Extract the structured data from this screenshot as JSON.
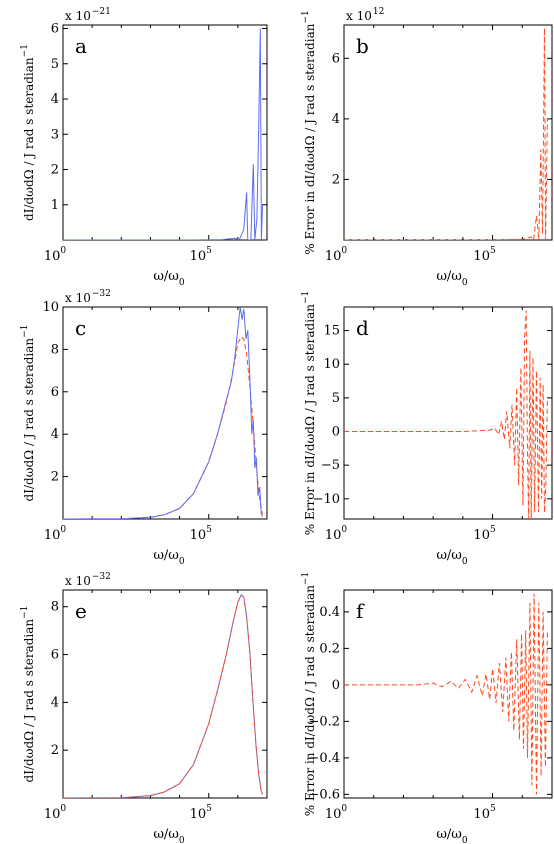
{
  "colors": {
    "solid": "#5B6CF0",
    "dashed": "#FF4A1E",
    "axis": "#000000"
  },
  "chart_data": [
    {
      "id": "a",
      "type": "line",
      "panel_letter": "a",
      "x_scale": "log",
      "xlim": [
        1,
        10000000
      ],
      "ylim": [
        0,
        6.1
      ],
      "multiplier": {
        "base": "x 10",
        "exp": "−21"
      },
      "yticks": [
        1,
        2,
        3,
        4,
        5,
        6
      ],
      "ytick_labels": [
        "1",
        "2",
        "3",
        "4",
        "5",
        "6"
      ],
      "xlabel": {
        "main": "ω/ω",
        "sub": "0"
      },
      "ylabel": {
        "main": "dI/dωdΩ / J rad s steradian",
        "sup": "−1"
      },
      "series": [
        {
          "style": "solid",
          "points": [
            [
              1,
              0
            ],
            [
              1000,
              0
            ],
            [
              30000,
              0
            ],
            [
              300000,
              0.01
            ],
            [
              800000,
              0.05
            ],
            [
              1100000,
              0
            ],
            [
              1600000,
              0.3
            ],
            [
              2000000,
              1.35
            ],
            [
              2200000,
              0
            ],
            [
              2800000,
              0
            ],
            [
              3400000,
              2.15
            ],
            [
              3800000,
              0
            ],
            [
              4500000,
              0.6
            ],
            [
              5200000,
              3.2
            ],
            [
              5900000,
              6.0
            ],
            [
              6400000,
              0
            ],
            [
              7000000,
              1.0
            ]
          ]
        }
      ]
    },
    {
      "id": "b",
      "type": "line",
      "panel_letter": "b",
      "x_scale": "log",
      "xlim": [
        1,
        10000000
      ],
      "ylim": [
        0,
        7.1
      ],
      "multiplier": {
        "base": "x 10",
        "exp": "12"
      },
      "yticks": [
        2,
        4,
        6
      ],
      "ytick_labels": [
        "2",
        "4",
        "6"
      ],
      "xlabel": {
        "main": "ω/ω",
        "sub": "0"
      },
      "ylabel": {
        "main": "% Error in dI/dωdΩ / J rad s steradian",
        "sup": "−1"
      },
      "series": [
        {
          "style": "dashed",
          "points": [
            [
              1,
              0
            ],
            [
              100000,
              0
            ],
            [
              1000000,
              0.02
            ],
            [
              2000000,
              0.1
            ],
            [
              2400000,
              0
            ],
            [
              3000000,
              0.8
            ],
            [
              3600000,
              0
            ],
            [
              4200000,
              3.0
            ],
            [
              4800000,
              0.2
            ],
            [
              5600000,
              7.0
            ],
            [
              6100000,
              0
            ],
            [
              7000000,
              4.0
            ]
          ]
        }
      ]
    },
    {
      "id": "c",
      "type": "line",
      "panel_letter": "c",
      "x_scale": "log",
      "xlim": [
        1,
        10000000
      ],
      "ylim": [
        0,
        10
      ],
      "multiplier": {
        "base": "x 10",
        "exp": "−32"
      },
      "yticks": [
        2,
        4,
        6,
        8,
        10
      ],
      "ytick_labels": [
        "2",
        "4",
        "6",
        "8",
        "10"
      ],
      "xlabel": {
        "main": "ω/ω",
        "sub": "0"
      },
      "ylabel": {
        "main": "dI/dωdΩ / J rad s steradian",
        "sup": "−1"
      },
      "series": [
        {
          "style": "dashed",
          "points": [
            [
              1,
              0
            ],
            [
              100,
              0.01
            ],
            [
              1000,
              0.08
            ],
            [
              3000,
              0.2
            ],
            [
              10000,
              0.5
            ],
            [
              30000,
              1.2
            ],
            [
              100000,
              2.7
            ],
            [
              200000,
              4.0
            ],
            [
              400000,
              5.5
            ],
            [
              600000,
              6.6
            ],
            [
              800000,
              7.5
            ],
            [
              1000000,
              8.3
            ],
            [
              1300000,
              8.6
            ],
            [
              1600000,
              8.5
            ],
            [
              2000000,
              7.8
            ],
            [
              2600000,
              6.2
            ],
            [
              3500000,
              4.2
            ],
            [
              4500000,
              2.2
            ],
            [
              5500000,
              1.0
            ],
            [
              7000000,
              0.2
            ]
          ]
        },
        {
          "style": "solid",
          "points": [
            [
              1,
              0
            ],
            [
              100,
              0.01
            ],
            [
              1000,
              0.08
            ],
            [
              3000,
              0.2
            ],
            [
              10000,
              0.5
            ],
            [
              30000,
              1.2
            ],
            [
              100000,
              2.7
            ],
            [
              200000,
              4.0
            ],
            [
              400000,
              5.6
            ],
            [
              600000,
              6.5
            ],
            [
              800000,
              7.7
            ],
            [
              1000000,
              9.0
            ],
            [
              1200000,
              10.0
            ],
            [
              1400000,
              9.4
            ],
            [
              1600000,
              9.9
            ],
            [
              1900000,
              8.5
            ],
            [
              2200000,
              8.9
            ],
            [
              2600000,
              6.5
            ],
            [
              3000000,
              4.0
            ],
            [
              3400000,
              4.7
            ],
            [
              3800000,
              2.4
            ],
            [
              4300000,
              2.9
            ],
            [
              4900000,
              1.1
            ],
            [
              5600000,
              1.5
            ],
            [
              6300000,
              0.3
            ],
            [
              7000000,
              0.1
            ]
          ]
        }
      ]
    },
    {
      "id": "d",
      "type": "line",
      "panel_letter": "d",
      "x_scale": "log",
      "xlim": [
        1,
        10000000
      ],
      "ylim": [
        -13,
        18.5
      ],
      "multiplier": null,
      "yticks": [
        -10,
        -5,
        0,
        5,
        10,
        15
      ],
      "ytick_labels": [
        "−10",
        "−5",
        "0",
        "5",
        "10",
        "15"
      ],
      "xlabel": {
        "main": "ω/ω",
        "sub": "0"
      },
      "ylabel": {
        "main": "% Error in dI/dωdΩ / J rad s steradian",
        "sup": "−1"
      },
      "series": [
        {
          "style": "dashed",
          "points": [
            [
              1,
              0
            ],
            [
              10000,
              0
            ],
            [
              80000,
              0.2
            ],
            [
              120000,
              0.5
            ],
            [
              160000,
              -0.5
            ],
            [
              200000,
              1.5
            ],
            [
              250000,
              -1.2
            ],
            [
              300000,
              3
            ],
            [
              380000,
              -2.5
            ],
            [
              450000,
              4
            ],
            [
              550000,
              -5
            ],
            [
              650000,
              6.5
            ],
            [
              750000,
              -8
            ],
            [
              900000,
              9.5
            ],
            [
              1050000,
              -11
            ],
            [
              1200000,
              14
            ],
            [
              1350000,
              18
            ],
            [
              1500000,
              -4
            ],
            [
              1650000,
              -13
            ],
            [
              1800000,
              12
            ],
            [
              2000000,
              -13
            ],
            [
              2300000,
              11
            ],
            [
              2600000,
              -12
            ],
            [
              3000000,
              9
            ],
            [
              3500000,
              -12
            ],
            [
              4000000,
              8
            ],
            [
              4500000,
              -10
            ],
            [
              5000000,
              7
            ],
            [
              5600000,
              -12
            ],
            [
              6200000,
              -8
            ],
            [
              7000000,
              5
            ]
          ]
        }
      ]
    },
    {
      "id": "e",
      "type": "line",
      "panel_letter": "e",
      "x_scale": "log",
      "xlim": [
        1,
        10000000
      ],
      "ylim": [
        0,
        8.7
      ],
      "multiplier": {
        "base": "x 10",
        "exp": "−32"
      },
      "yticks": [
        2,
        4,
        6,
        8
      ],
      "ytick_labels": [
        "2",
        "4",
        "6",
        "8"
      ],
      "xlabel": {
        "main": "ω/ω",
        "sub": "0"
      },
      "ylabel": {
        "main": "dI/dωdΩ / J rad s steradian",
        "sup": "−1"
      },
      "series": [
        {
          "style": "solid",
          "points": [
            [
              1,
              0
            ],
            [
              100,
              0.01
            ],
            [
              1000,
              0.1
            ],
            [
              3000,
              0.25
            ],
            [
              10000,
              0.6
            ],
            [
              30000,
              1.4
            ],
            [
              100000,
              3.1
            ],
            [
              200000,
              4.5
            ],
            [
              400000,
              6.0
            ],
            [
              700000,
              7.4
            ],
            [
              1000000,
              8.2
            ],
            [
              1300000,
              8.5
            ],
            [
              1600000,
              8.4
            ],
            [
              2000000,
              7.6
            ],
            [
              2600000,
              6.0
            ],
            [
              3300000,
              4.0
            ],
            [
              4200000,
              2.2
            ],
            [
              5200000,
              1.0
            ],
            [
              6300000,
              0.3
            ],
            [
              7000000,
              0.15
            ]
          ]
        },
        {
          "style": "dashed",
          "points": [
            [
              1,
              0
            ],
            [
              100,
              0.01
            ],
            [
              1000,
              0.1
            ],
            [
              3000,
              0.25
            ],
            [
              10000,
              0.6
            ],
            [
              30000,
              1.4
            ],
            [
              100000,
              3.1
            ],
            [
              200000,
              4.5
            ],
            [
              400000,
              6.0
            ],
            [
              700000,
              7.4
            ],
            [
              1000000,
              8.2
            ],
            [
              1300000,
              8.5
            ],
            [
              1600000,
              8.4
            ],
            [
              2000000,
              7.6
            ],
            [
              2600000,
              6.0
            ],
            [
              3300000,
              4.0
            ],
            [
              4200000,
              2.2
            ],
            [
              5200000,
              1.0
            ],
            [
              6300000,
              0.3
            ],
            [
              7000000,
              0.15
            ]
          ]
        }
      ]
    },
    {
      "id": "f",
      "type": "line",
      "panel_letter": "f",
      "x_scale": "log",
      "xlim": [
        1,
        10000000
      ],
      "ylim": [
        -0.62,
        0.52
      ],
      "multiplier": null,
      "yticks": [
        -0.6,
        -0.4,
        -0.2,
        0,
        0.2,
        0.4
      ],
      "ytick_labels": [
        "−0.6",
        "−0.4",
        "−0.2",
        "0",
        "0.2",
        "0.4"
      ],
      "xlabel": {
        "main": "ω/ω",
        "sub": "0"
      },
      "ylabel": {
        "main": "% Error in dI/dωdΩ / J rad s steradian",
        "sup": "−1"
      },
      "series": [
        {
          "style": "dashed",
          "points": [
            [
              1,
              0
            ],
            [
              300,
              0
            ],
            [
              1000,
              0.01
            ],
            [
              2000,
              -0.01
            ],
            [
              4000,
              0.02
            ],
            [
              7000,
              -0.02
            ],
            [
              12000,
              0.03
            ],
            [
              20000,
              -0.04
            ],
            [
              30000,
              0.05
            ],
            [
              45000,
              -0.06
            ],
            [
              60000,
              0.06
            ],
            [
              80000,
              -0.08
            ],
            [
              100000,
              0.09
            ],
            [
              130000,
              -0.1
            ],
            [
              170000,
              0.12
            ],
            [
              220000,
              -0.15
            ],
            [
              280000,
              0.15
            ],
            [
              350000,
              -0.2
            ],
            [
              430000,
              0.18
            ],
            [
              520000,
              -0.25
            ],
            [
              650000,
              0.25
            ],
            [
              800000,
              -0.3
            ],
            [
              950000,
              0.28
            ],
            [
              1100000,
              -0.35
            ],
            [
              1300000,
              0.3
            ],
            [
              1500000,
              -0.4
            ],
            [
              1800000,
              0.45
            ],
            [
              2100000,
              -0.55
            ],
            [
              2500000,
              0.5
            ],
            [
              3000000,
              -0.6
            ],
            [
              3600000,
              0.45
            ],
            [
              4300000,
              -0.5
            ],
            [
              5000000,
              0.4
            ],
            [
              6000000,
              -0.45
            ],
            [
              7000000,
              0.3
            ]
          ]
        }
      ]
    }
  ]
}
